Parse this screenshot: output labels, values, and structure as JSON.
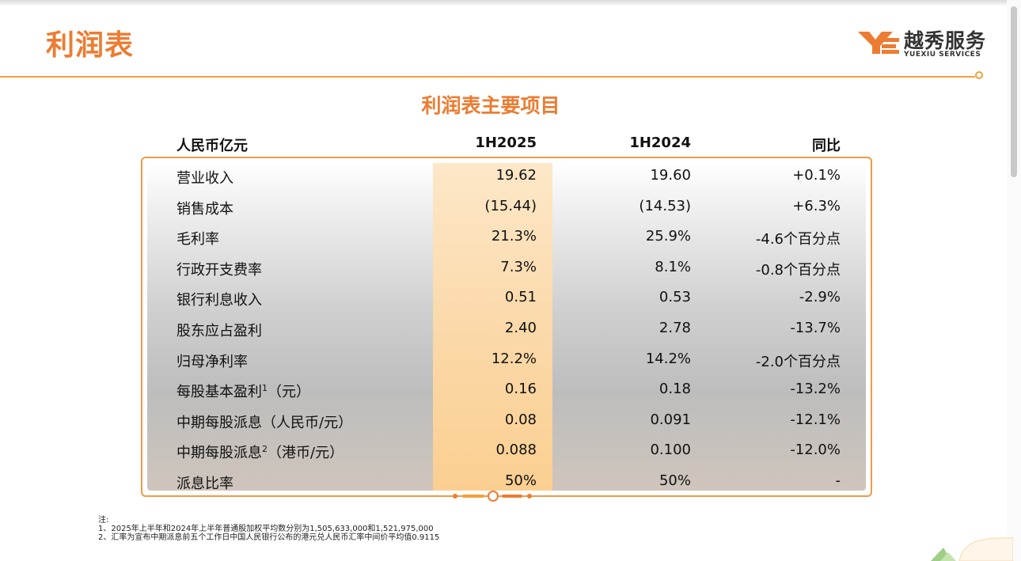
{
  "page": {
    "title": "利润表",
    "section_title": "利润表主要项目"
  },
  "logo": {
    "cn": "越秀服务",
    "en": "YUEXIU SERVICES"
  },
  "table": {
    "headers": [
      "人民币亿元",
      "1H2025",
      "1H2024",
      "同比"
    ],
    "rows": [
      {
        "label": "营业收入",
        "sup": "",
        "suffix": "",
        "v2025": "19.62",
        "v2024": "19.60",
        "yoy": "+0.1%"
      },
      {
        "label": "销售成本",
        "sup": "",
        "suffix": "",
        "v2025": "(15.44)",
        "v2024": "(14.53)",
        "yoy": "+6.3%"
      },
      {
        "label": "毛利率",
        "sup": "",
        "suffix": "",
        "v2025": "21.3%",
        "v2024": "25.9%",
        "yoy": "-4.6个百分点"
      },
      {
        "label": "行政开支费率",
        "sup": "",
        "suffix": "",
        "v2025": "7.3%",
        "v2024": "8.1%",
        "yoy": "-0.8个百分点"
      },
      {
        "label": "银行利息收入",
        "sup": "",
        "suffix": "",
        "v2025": "0.51",
        "v2024": "0.53",
        "yoy": "-2.9%"
      },
      {
        "label": "股东应占盈利",
        "sup": "",
        "suffix": "",
        "v2025": "2.40",
        "v2024": "2.78",
        "yoy": "-13.7%"
      },
      {
        "label": "归母净利率",
        "sup": "",
        "suffix": "",
        "v2025": "12.2%",
        "v2024": "14.2%",
        "yoy": "-2.0个百分点"
      },
      {
        "label": "每股基本盈利",
        "sup": "1",
        "suffix": "（元）",
        "v2025": "0.16",
        "v2024": "0.18",
        "yoy": "-13.2%"
      },
      {
        "label": "中期每股派息（人民币/元）",
        "sup": "",
        "suffix": "",
        "v2025": "0.08",
        "v2024": "0.091",
        "yoy": "-12.1%"
      },
      {
        "label": "中期每股派息",
        "sup": "2",
        "suffix": "（港币/元）",
        "v2025": "0.088",
        "v2024": "0.100",
        "yoy": "-12.0%"
      },
      {
        "label": "派息比率",
        "sup": "",
        "suffix": "",
        "v2025": "50%",
        "v2024": "50%",
        "yoy": "-"
      }
    ]
  },
  "notes": {
    "heading": "注:",
    "items": [
      "1、2025年上半年和2024年上半年普通股加权平均数分别为1,505,633,000和1,521,975,000",
      "2、汇率为宣布中期派息前五个工作日中国人民银行公布的港元兑人民币汇率中间价平均值0.9115"
    ]
  },
  "colors": {
    "accent": "#ec7c31",
    "line": "#f2a03d",
    "highlight": "#fbd9aa"
  }
}
